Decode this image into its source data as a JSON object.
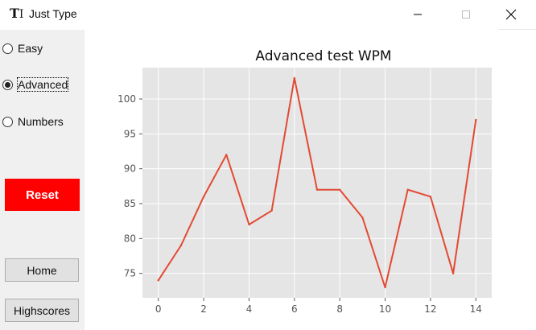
{
  "window": {
    "title": "Just Type",
    "icon": "tk-feather-icon",
    "controls": [
      "minimize",
      "maximize",
      "close"
    ]
  },
  "sidebar": {
    "modes": [
      {
        "label": "Easy",
        "selected": false
      },
      {
        "label": "Advanced",
        "selected": true
      },
      {
        "label": "Numbers",
        "selected": false
      }
    ],
    "reset_label": "Reset",
    "home_label": "Home",
    "highscores_label": "Highscores"
  },
  "colors": {
    "reset_bg": "#ff0000",
    "plot_bg": "#e5e5e5",
    "line": "#e24a33"
  },
  "chart_data": {
    "type": "line",
    "title": "Advanced test WPM",
    "xlabel": "",
    "ylabel": "",
    "x": [
      0,
      1,
      2,
      3,
      4,
      5,
      6,
      7,
      8,
      9,
      10,
      11,
      12,
      13,
      14
    ],
    "series": [
      {
        "values": [
          74,
          79,
          86,
          92,
          82,
          84,
          103,
          87,
          87,
          83,
          73,
          87,
          86,
          75,
          97
        ]
      }
    ],
    "xticks": [
      0,
      2,
      4,
      6,
      8,
      10,
      12,
      14
    ],
    "yticks": [
      75,
      80,
      85,
      90,
      95,
      100
    ],
    "xlim": [
      -0.7,
      14.7
    ],
    "ylim": [
      71.5,
      104.5
    ],
    "grid": true
  }
}
